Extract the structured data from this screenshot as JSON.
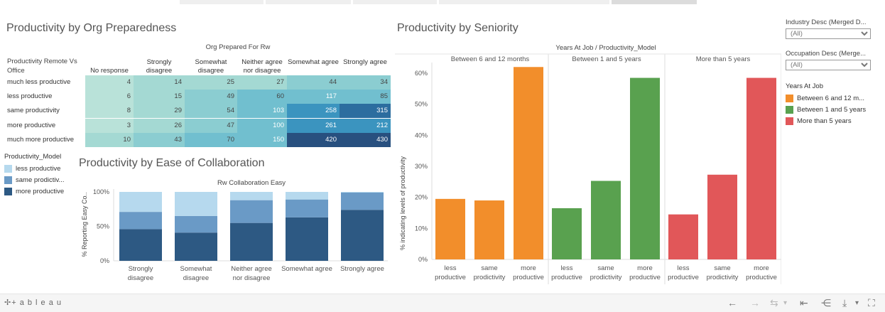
{
  "colors": {
    "heat": [
      "#b9e2d9",
      "#a4d9d3",
      "#8bcdd1",
      "#71bfcf",
      "#3b94bf",
      "#2c6d9f",
      "#28507f"
    ],
    "light_blue": "#b6d9ee",
    "mid_blue": "#6a9ac6",
    "dark_blue": "#2d5983",
    "orange": "#f28e2b",
    "green": "#59a14f",
    "red": "#e15759"
  },
  "org": {
    "title": "Productivity by Org Preparedness",
    "col_group": "Org Prepared For Rw",
    "row_header": "Productivity Remote Vs Office",
    "columns": [
      "No response",
      "Strongly disagree",
      "Somewhat disagree",
      "Neither agree nor disagree",
      "Somewhat agree",
      "Strongly agree"
    ],
    "rows": [
      {
        "label": "much less productive",
        "values": [
          4,
          14,
          25,
          27,
          44,
          34
        ]
      },
      {
        "label": "less productive",
        "values": [
          6,
          15,
          49,
          60,
          117,
          85
        ]
      },
      {
        "label": "same productivity",
        "values": [
          8,
          29,
          54,
          103,
          258,
          315
        ]
      },
      {
        "label": "more productive",
        "values": [
          3,
          26,
          47,
          100,
          261,
          212
        ]
      },
      {
        "label": "much more productive",
        "values": [
          10,
          43,
          70,
          150,
          420,
          430
        ]
      }
    ]
  },
  "model_legend": {
    "title": "Productivity_Model",
    "items": [
      "less productive",
      "same prodictiv...",
      "more productive"
    ]
  },
  "collab": {
    "title": "Productivity by Ease of Collaboration",
    "col_group": "Rw Collaboration Easy",
    "ylabel": "% Reporting Easy Co..",
    "yticks": [
      "100%",
      "50%",
      "0%"
    ],
    "categories": [
      "Strongly disagree",
      "Somewhat disagree",
      "Neither agree nor disagree",
      "Somewhat agree",
      "Strongly agree"
    ],
    "category_lines": [
      [
        "Strongly",
        "disagree"
      ],
      [
        "Somewhat",
        "disagree"
      ],
      [
        "Neither agree",
        "nor disagree"
      ],
      [
        "Somewhat agree"
      ],
      [
        "Strongly agree"
      ]
    ]
  },
  "seniority": {
    "title": "Productivity by Seniority",
    "col_group": "Years At Job / Productivity_Model",
    "ylabel": "% indicating levels of productivity",
    "yticks": [
      "60%",
      "50%",
      "40%",
      "30%",
      "20%",
      "10%",
      "0%"
    ],
    "panels": [
      "Between 6 and 12 months",
      "Between 1 and 5 years",
      "More than 5 years"
    ],
    "bar_labels": [
      [
        "less",
        "productive"
      ],
      [
        "same",
        "prodictivity"
      ],
      [
        "more",
        "productive"
      ]
    ]
  },
  "chart_data": [
    {
      "type": "heatmap",
      "title": "Productivity by Org Preparedness",
      "xlabel": "Org Prepared For Rw",
      "ylabel": "Productivity Remote Vs Office",
      "x": [
        "No response",
        "Strongly disagree",
        "Somewhat disagree",
        "Neither agree nor disagree",
        "Somewhat agree",
        "Strongly agree"
      ],
      "y": [
        "much less productive",
        "less productive",
        "same productivity",
        "more productive",
        "much more productive"
      ],
      "values": [
        [
          4,
          14,
          25,
          27,
          44,
          34
        ],
        [
          6,
          15,
          49,
          60,
          117,
          85
        ],
        [
          8,
          29,
          54,
          103,
          258,
          315
        ],
        [
          3,
          26,
          47,
          100,
          261,
          212
        ],
        [
          10,
          43,
          70,
          150,
          420,
          430
        ]
      ]
    },
    {
      "type": "bar",
      "stacked": true,
      "title": "Productivity by Ease of Collaboration",
      "xlabel": "Rw Collaboration Easy",
      "ylabel": "% Reporting Easy Co..",
      "categories": [
        "Strongly disagree",
        "Somewhat disagree",
        "Neither agree nor disagree",
        "Somewhat agree",
        "Strongly agree"
      ],
      "ylim": [
        0,
        100
      ],
      "series": [
        {
          "name": "more productive",
          "values": [
            46,
            41,
            55,
            63,
            74
          ]
        },
        {
          "name": "same prodictiv...",
          "values": [
            25,
            24,
            33,
            26,
            25
          ]
        },
        {
          "name": "less productive",
          "values": [
            29,
            35,
            12,
            11,
            1
          ]
        }
      ]
    },
    {
      "type": "bar",
      "title": "Productivity by Seniority",
      "xlabel": "Years At Job / Productivity_Model",
      "ylabel": "% indicating levels of productivity",
      "ylim": [
        0,
        65
      ],
      "categories": [
        "less productive",
        "same prodictivity",
        "more productive"
      ],
      "series": [
        {
          "name": "Between 6 and 12 months",
          "values": [
            19.5,
            19.0,
            62.0
          ]
        },
        {
          "name": "Between 1 and 5 years",
          "values": [
            16.5,
            25.3,
            58.5
          ]
        },
        {
          "name": "More than 5 years",
          "values": [
            14.5,
            27.3,
            58.5
          ]
        }
      ]
    }
  ],
  "filters": {
    "industry_label": "Industry Desc (Merged D...",
    "industry_value": "(All)",
    "occupation_label": "Occupation Desc (Merge...",
    "occupation_value": "(All)"
  },
  "years_legend": {
    "title": "Years At Job",
    "items": [
      "Between 6 and 12 m...",
      "Between 1 and 5 years",
      "More than 5 years"
    ]
  },
  "footer": {
    "brand": "+ a b l e a u"
  }
}
